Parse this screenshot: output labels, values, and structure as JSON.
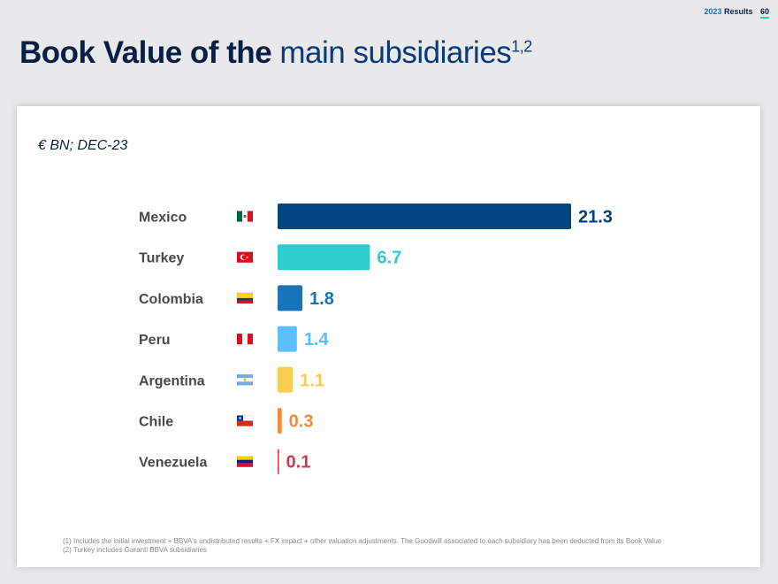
{
  "header": {
    "year": "2023",
    "label": "Results",
    "page_number": "60"
  },
  "title": {
    "bold": "Book Value of the",
    "light": "main subsidiaries",
    "superscript": "1,2"
  },
  "unit_label": "€ BN; DEC-23",
  "chart_data": {
    "type": "bar",
    "orientation": "horizontal",
    "categories": [
      "Mexico",
      "Turkey",
      "Colombia",
      "Peru",
      "Argentina",
      "Chile",
      "Venezuela"
    ],
    "values": [
      21.3,
      6.7,
      1.8,
      1.4,
      1.1,
      0.3,
      0.1
    ],
    "value_labels": [
      "21.3",
      "6.7",
      "1.8",
      "1.4",
      "1.1",
      "0.3",
      "0.1"
    ],
    "colors": [
      "#004481",
      "#2dcccd",
      "#1973b8",
      "#5bbeff",
      "#f8cd51",
      "#f7893b",
      "#da3851"
    ],
    "flags": [
      "mexico-flag",
      "turkey-flag",
      "colombia-flag",
      "peru-flag",
      "argentina-flag",
      "chile-flag",
      "venezuela-flag"
    ],
    "xlim": [
      0,
      21.3
    ],
    "title": "",
    "xlabel": "",
    "ylabel": ""
  },
  "footnotes": [
    "(1) Includes the initial investment + BBVA's undistributed results + FX impact + other valuation adjustments. The Goodwill associated to each subsidiary has been deducted from its Book Value",
    "(2) Turkey includes Garanti BBVA subsidiaries"
  ]
}
